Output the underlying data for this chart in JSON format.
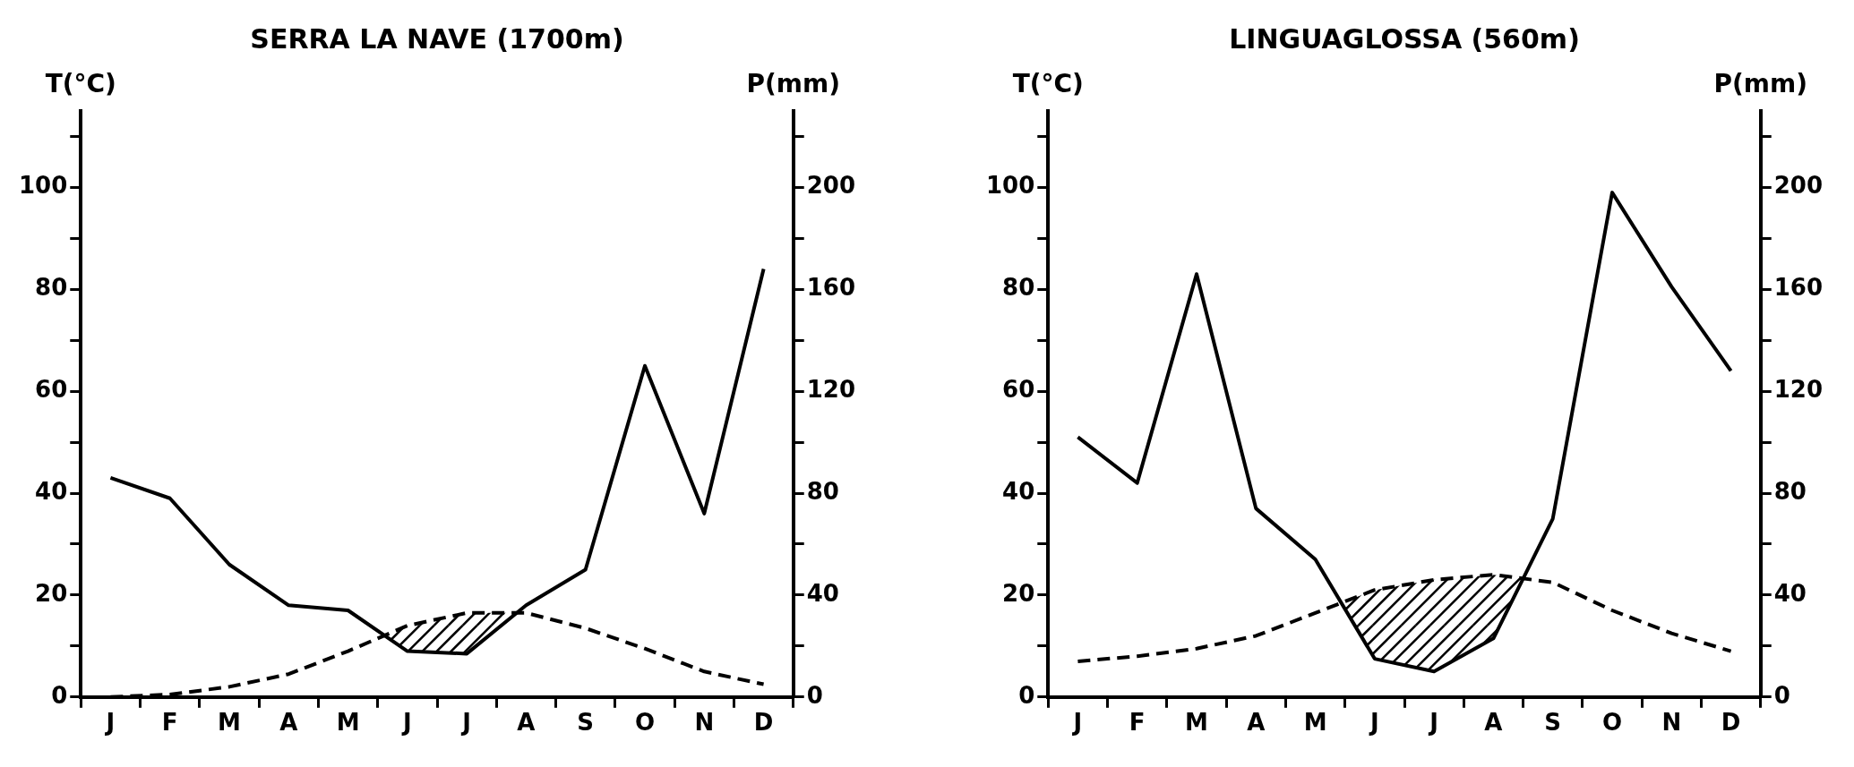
{
  "chart_data": [
    {
      "type": "line",
      "title": "SERRA LA NAVE (1700m)",
      "ylabel": "T(°C)",
      "y2label": "P(mm)",
      "categories": [
        "J",
        "F",
        "M",
        "A",
        "M",
        "J",
        "J",
        "A",
        "S",
        "O",
        "N",
        "D"
      ],
      "series": [
        {
          "color": "#000000",
          "line_style": "dashed",
          "axis": "y",
          "values": [
            0,
            0.5,
            2,
            4.5,
            9,
            14,
            16.5,
            16.5,
            13.5,
            9.5,
            5,
            2.5
          ]
        },
        {
          "color": "#000000",
          "line_style": "solid",
          "axis": "y2",
          "values": [
            86,
            78,
            52,
            36,
            34,
            18,
            17,
            36,
            50,
            130,
            72,
            168
          ]
        }
      ],
      "ylim": [
        0,
        115
      ],
      "yticks": [
        0,
        {
          "value": 10,
          "label": null
        },
        20,
        {
          "value": 30,
          "label": null
        },
        40,
        {
          "value": 50,
          "label": null
        },
        60,
        {
          "value": 70,
          "label": null
        },
        80,
        {
          "value": 90,
          "label": null
        },
        100,
        {
          "value": 110,
          "label": null
        }
      ],
      "y2lim": [
        0,
        230
      ],
      "y2ticks": [
        0,
        {
          "value": 20,
          "label": null
        },
        40,
        {
          "value": 60,
          "label": null
        },
        80,
        {
          "value": 100,
          "label": null
        },
        120,
        {
          "value": 140,
          "label": null
        },
        160,
        {
          "value": 180,
          "label": null
        },
        200,
        {
          "value": 220,
          "label": null
        }
      ],
      "grid": false,
      "legend": false,
      "marker": "none"
    },
    {
      "type": "line",
      "title": "LINGUAGLOSSA (560m)",
      "ylabel": "T(°C)",
      "y2label": "P(mm)",
      "categories": [
        "J",
        "F",
        "M",
        "A",
        "M",
        "J",
        "J",
        "A",
        "S",
        "O",
        "N",
        "D"
      ],
      "series": [
        {
          "color": "#000000",
          "line_style": "dashed",
          "axis": "y",
          "values": [
            7,
            8,
            9.5,
            12,
            16.5,
            21,
            23,
            24,
            22.5,
            17,
            12.5,
            9
          ]
        },
        {
          "color": "#000000",
          "line_style": "solid",
          "axis": "y2",
          "values": [
            102,
            84,
            166,
            74,
            54,
            15,
            10,
            23,
            70,
            198,
            161,
            128
          ]
        }
      ],
      "ylim": [
        0,
        115
      ],
      "yticks": [
        0,
        {
          "value": 10,
          "label": null
        },
        20,
        {
          "value": 30,
          "label": null
        },
        40,
        {
          "value": 50,
          "label": null
        },
        60,
        {
          "value": 70,
          "label": null
        },
        80,
        {
          "value": 90,
          "label": null
        },
        100,
        {
          "value": 110,
          "label": null
        }
      ],
      "y2lim": [
        0,
        230
      ],
      "y2ticks": [
        0,
        {
          "value": 20,
          "label": null
        },
        40,
        {
          "value": 60,
          "label": null
        },
        80,
        {
          "value": 100,
          "label": null
        },
        120,
        {
          "value": 140,
          "label": null
        },
        160,
        {
          "value": 180,
          "label": null
        },
        200,
        {
          "value": 220,
          "label": null
        }
      ],
      "grid": false,
      "legend": false,
      "marker": "none"
    }
  ]
}
